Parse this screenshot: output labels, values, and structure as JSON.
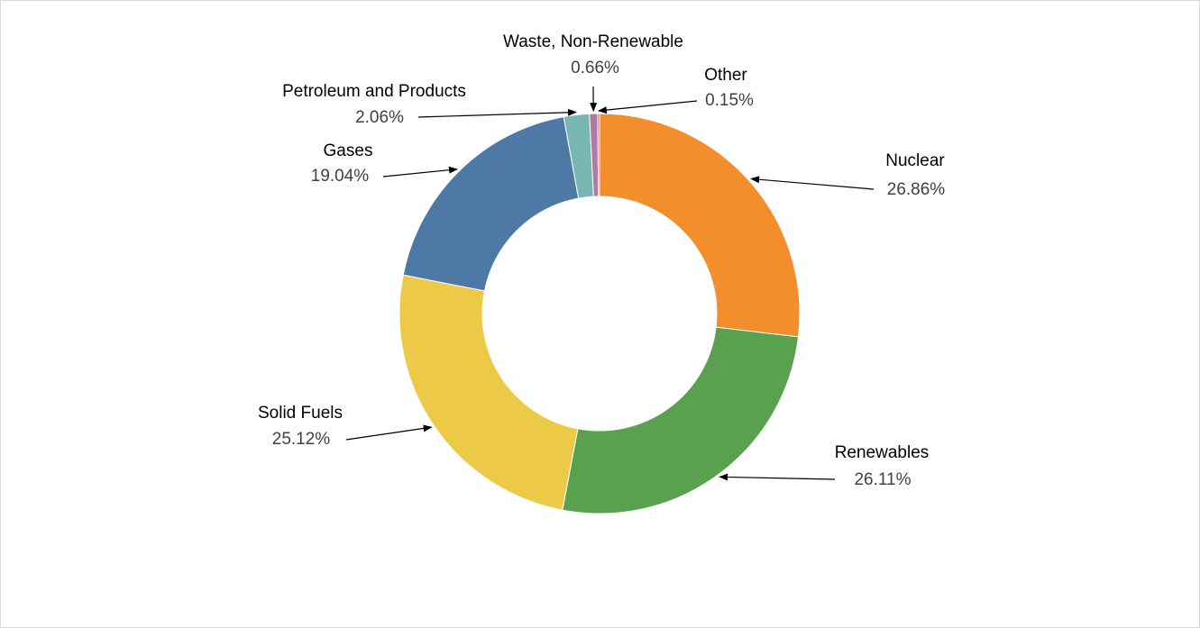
{
  "chart_data": {
    "type": "pie",
    "donut": true,
    "title": "",
    "categories": [
      "Nuclear",
      "Renewables",
      "Solid Fuels",
      "Gases",
      "Petroleum and Products",
      "Waste, Non-Renewable",
      "Other"
    ],
    "values": [
      26.86,
      26.11,
      25.12,
      19.04,
      2.06,
      0.66,
      0.15
    ],
    "value_labels": [
      "26.86%",
      "26.11%",
      "25.12%",
      "19.04%",
      "2.06%",
      "0.66%",
      "0.15%"
    ],
    "colors": [
      "#F28E2B",
      "#59A14F",
      "#EDC948",
      "#4E79A7",
      "#76B7B2",
      "#B07AA1",
      "#E15759"
    ],
    "legend": "none"
  }
}
